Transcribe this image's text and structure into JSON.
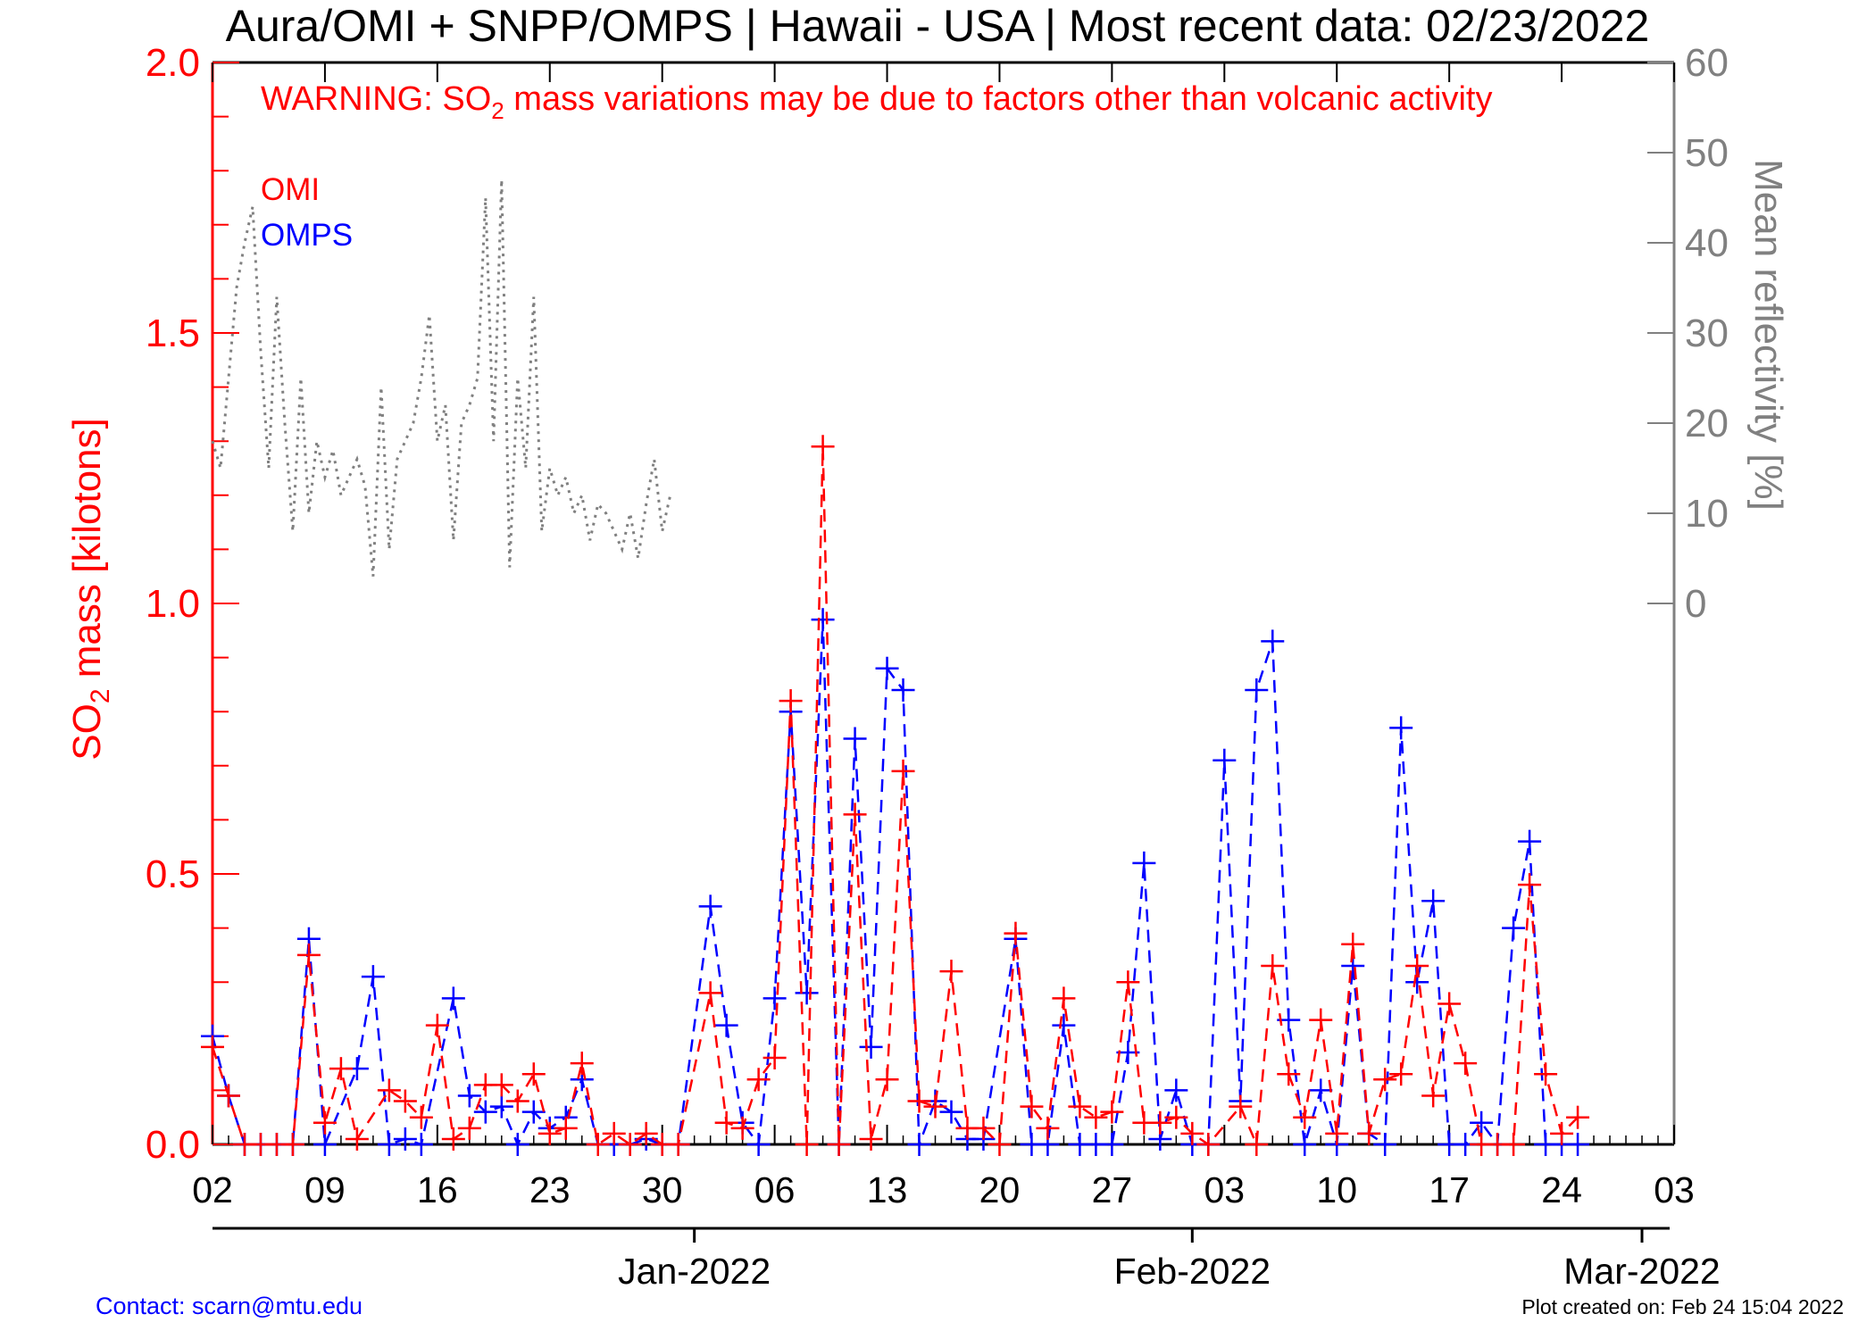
{
  "title": "Aura/OMI + SNPP/OMPS | Hawaii - USA | Most recent data: 02/23/2022",
  "warning": {
    "before": "WARNING: SO",
    "sub": "2",
    "after": " mass variations may be due to factors other than volcanic activity"
  },
  "footer": {
    "contact": "Contact: scarn@mtu.edu",
    "created": "Plot created on: Feb 24 15:04 2022"
  },
  "colors": {
    "omi": "#ff0000",
    "omps": "#0000ff",
    "reflectivity": "#808080",
    "axis_left": "#ff0000",
    "axis_right": "#808080",
    "contact": "#0000ff"
  },
  "chart_data": {
    "type": "line",
    "x_unit": "date",
    "x_start": "2021-12-02",
    "x_end": "2022-03-03",
    "x_tick_labels": [
      "02",
      "09",
      "16",
      "23",
      "30",
      "06",
      "13",
      "20",
      "27",
      "03",
      "10",
      "17",
      "24",
      "03"
    ],
    "x_month_labels": [
      "Jan-2022",
      "Feb-2022",
      "Mar-2022"
    ],
    "y_left": {
      "label_before": "SO",
      "label_sub": "2",
      "label_after": " mass [kilotons]",
      "ylim": [
        0,
        2
      ],
      "ticks": [
        "0.0",
        "0.5",
        "1.0",
        "1.5",
        "2.0"
      ]
    },
    "y_right": {
      "label": "Mean reflectivity [%]",
      "ylim": [
        -60,
        60
      ],
      "ticks": [
        "0",
        "10",
        "20",
        "30",
        "40",
        "50",
        "60"
      ]
    },
    "legend_position": "top-left",
    "series": [
      {
        "name": "OMI",
        "marker": "+",
        "line": "dashed",
        "axis": "left",
        "points": [
          [
            "2021-12-02",
            0.18
          ],
          [
            "2021-12-03",
            0.09
          ],
          [
            "2021-12-04",
            0.0
          ],
          [
            "2021-12-05",
            0.0
          ],
          [
            "2021-12-06",
            0.0
          ],
          [
            "2021-12-07",
            0.0
          ],
          [
            "2021-12-08",
            0.35
          ],
          [
            "2021-12-09",
            0.04
          ],
          [
            "2021-12-10",
            0.14
          ],
          [
            "2021-12-11",
            0.01
          ],
          [
            "2021-12-13",
            0.1
          ],
          [
            "2021-12-14",
            0.08
          ],
          [
            "2021-12-15",
            0.05
          ],
          [
            "2021-12-16",
            0.22
          ],
          [
            "2021-12-17",
            0.01
          ],
          [
            "2021-12-18",
            0.03
          ],
          [
            "2021-12-19",
            0.11
          ],
          [
            "2021-12-20",
            0.11
          ],
          [
            "2021-12-21",
            0.08
          ],
          [
            "2021-12-22",
            0.13
          ],
          [
            "2021-12-23",
            0.02
          ],
          [
            "2021-12-24",
            0.03
          ],
          [
            "2021-12-25",
            0.15
          ],
          [
            "2021-12-26",
            0.0
          ],
          [
            "2021-12-27",
            0.02
          ],
          [
            "2021-12-28",
            0.0
          ],
          [
            "2021-12-29",
            0.02
          ],
          [
            "2021-12-30",
            0.0
          ],
          [
            "2021-12-31",
            0.0
          ],
          [
            "2022-01-02",
            0.28
          ],
          [
            "2022-01-03",
            0.04
          ],
          [
            "2022-01-04",
            0.03
          ],
          [
            "2022-01-05",
            0.12
          ],
          [
            "2022-01-06",
            0.16
          ],
          [
            "2022-01-07",
            0.82
          ],
          [
            "2022-01-08",
            0.0
          ],
          [
            "2022-01-09",
            1.29
          ],
          [
            "2022-01-10",
            0.0
          ],
          [
            "2022-01-11",
            0.61
          ],
          [
            "2022-01-12",
            0.01
          ],
          [
            "2022-01-13",
            0.12
          ],
          [
            "2022-01-14",
            0.69
          ],
          [
            "2022-01-15",
            0.08
          ],
          [
            "2022-01-16",
            0.07
          ],
          [
            "2022-01-17",
            0.32
          ],
          [
            "2022-01-18",
            0.03
          ],
          [
            "2022-01-19",
            0.03
          ],
          [
            "2022-01-20",
            0.0
          ],
          [
            "2022-01-21",
            0.39
          ],
          [
            "2022-01-22",
            0.07
          ],
          [
            "2022-01-23",
            0.03
          ],
          [
            "2022-01-24",
            0.27
          ],
          [
            "2022-01-25",
            0.07
          ],
          [
            "2022-01-26",
            0.05
          ],
          [
            "2022-01-27",
            0.06
          ],
          [
            "2022-01-28",
            0.3
          ],
          [
            "2022-01-29",
            0.04
          ],
          [
            "2022-01-30",
            0.04
          ],
          [
            "2022-01-31",
            0.05
          ],
          [
            "2022-02-01",
            0.02
          ],
          [
            "2022-02-02",
            0.0
          ],
          [
            "2022-02-04",
            0.07
          ],
          [
            "2022-02-05",
            0.0
          ],
          [
            "2022-02-06",
            0.33
          ],
          [
            "2022-02-07",
            0.13
          ],
          [
            "2022-02-08",
            0.05
          ],
          [
            "2022-02-09",
            0.23
          ],
          [
            "2022-02-10",
            0.02
          ],
          [
            "2022-02-11",
            0.37
          ],
          [
            "2022-02-12",
            0.02
          ],
          [
            "2022-02-13",
            0.12
          ],
          [
            "2022-02-14",
            0.13
          ],
          [
            "2022-02-15",
            0.33
          ],
          [
            "2022-02-16",
            0.09
          ],
          [
            "2022-02-17",
            0.26
          ],
          [
            "2022-02-18",
            0.15
          ],
          [
            "2022-02-19",
            0.0
          ],
          [
            "2022-02-20",
            0.0
          ],
          [
            "2022-02-21",
            0.0
          ],
          [
            "2022-02-22",
            0.48
          ],
          [
            "2022-02-23",
            0.13
          ],
          [
            "2022-02-24",
            0.02
          ],
          [
            "2022-02-25",
            0.05
          ]
        ]
      },
      {
        "name": "OMPS",
        "marker": "+",
        "line": "dashed",
        "axis": "left",
        "points": [
          [
            "2021-12-02",
            0.2
          ],
          [
            "2021-12-03",
            0.09
          ],
          [
            "2021-12-04",
            0.0
          ],
          [
            "2021-12-05",
            0.0
          ],
          [
            "2021-12-06",
            0.0
          ],
          [
            "2021-12-07",
            0.0
          ],
          [
            "2021-12-08",
            0.38
          ],
          [
            "2021-12-09",
            0.0
          ],
          [
            "2021-12-11",
            0.14
          ],
          [
            "2021-12-12",
            0.31
          ],
          [
            "2021-12-13",
            0.0
          ],
          [
            "2021-12-14",
            0.01
          ],
          [
            "2021-12-15",
            0.0
          ],
          [
            "2021-12-17",
            0.27
          ],
          [
            "2021-12-18",
            0.09
          ],
          [
            "2021-12-19",
            0.06
          ],
          [
            "2021-12-20",
            0.07
          ],
          [
            "2021-12-21",
            0.0
          ],
          [
            "2021-12-22",
            0.06
          ],
          [
            "2021-12-23",
            0.03
          ],
          [
            "2021-12-24",
            0.05
          ],
          [
            "2021-12-25",
            0.12
          ],
          [
            "2021-12-26",
            0.0
          ],
          [
            "2021-12-27",
            0.0
          ],
          [
            "2021-12-28",
            0.0
          ],
          [
            "2021-12-29",
            0.01
          ],
          [
            "2021-12-30",
            0.0
          ],
          [
            "2021-12-31",
            0.0
          ],
          [
            "2022-01-02",
            0.44
          ],
          [
            "2022-01-03",
            0.22
          ],
          [
            "2022-01-04",
            0.04
          ],
          [
            "2022-01-05",
            0.0
          ],
          [
            "2022-01-06",
            0.27
          ],
          [
            "2022-01-07",
            0.8
          ],
          [
            "2022-01-08",
            0.28
          ],
          [
            "2022-01-09",
            0.97
          ],
          [
            "2022-01-10",
            0.0
          ],
          [
            "2022-01-11",
            0.75
          ],
          [
            "2022-01-12",
            0.18
          ],
          [
            "2022-01-13",
            0.88
          ],
          [
            "2022-01-14",
            0.84
          ],
          [
            "2022-01-15",
            0.0
          ],
          [
            "2022-01-16",
            0.08
          ],
          [
            "2022-01-17",
            0.06
          ],
          [
            "2022-01-18",
            0.01
          ],
          [
            "2022-01-19",
            0.01
          ],
          [
            "2022-01-21",
            0.38
          ],
          [
            "2022-01-22",
            0.0
          ],
          [
            "2022-01-23",
            0.0
          ],
          [
            "2022-01-24",
            0.22
          ],
          [
            "2022-01-25",
            0.0
          ],
          [
            "2022-01-26",
            0.0
          ],
          [
            "2022-01-27",
            0.0
          ],
          [
            "2022-01-28",
            0.17
          ],
          [
            "2022-01-29",
            0.52
          ],
          [
            "2022-01-30",
            0.01
          ],
          [
            "2022-01-31",
            0.1
          ],
          [
            "2022-02-01",
            0.0
          ],
          [
            "2022-02-02",
            0.0
          ],
          [
            "2022-02-03",
            0.71
          ],
          [
            "2022-02-04",
            0.08
          ],
          [
            "2022-02-05",
            0.84
          ],
          [
            "2022-02-06",
            0.93
          ],
          [
            "2022-02-07",
            0.23
          ],
          [
            "2022-02-08",
            0.0
          ],
          [
            "2022-02-09",
            0.1
          ],
          [
            "2022-02-10",
            0.0
          ],
          [
            "2022-02-11",
            0.33
          ],
          [
            "2022-02-12",
            0.02
          ],
          [
            "2022-02-13",
            0.0
          ],
          [
            "2022-02-14",
            0.77
          ],
          [
            "2022-02-15",
            0.3
          ],
          [
            "2022-02-16",
            0.45
          ],
          [
            "2022-02-17",
            0.0
          ],
          [
            "2022-02-18",
            0.0
          ],
          [
            "2022-02-19",
            0.04
          ],
          [
            "2022-02-20",
            0.0
          ],
          [
            "2022-02-21",
            0.4
          ],
          [
            "2022-02-22",
            0.56
          ],
          [
            "2022-02-23",
            0.0
          ],
          [
            "2022-02-24",
            0.0
          ],
          [
            "2022-02-25",
            0.0
          ]
        ]
      },
      {
        "name": "Mean reflectivity",
        "line": "dotted",
        "axis": "right",
        "points": [
          [
            "2021-12-02",
            18
          ],
          [
            "2021-12-02.5",
            15
          ],
          [
            "2021-12-03",
            25
          ],
          [
            "2021-12-03.5",
            35
          ],
          [
            "2021-12-04",
            40
          ],
          [
            "2021-12-04.5",
            44
          ],
          [
            "2021-12-05",
            28
          ],
          [
            "2021-12-05.5",
            15
          ],
          [
            "2021-12-06",
            34
          ],
          [
            "2021-12-06.5",
            20
          ],
          [
            "2021-12-07",
            8
          ],
          [
            "2021-12-07.5",
            25
          ],
          [
            "2021-12-08",
            10
          ],
          [
            "2021-12-08.5",
            18
          ],
          [
            "2021-12-09",
            14
          ],
          [
            "2021-12-09.5",
            17
          ],
          [
            "2021-12-10",
            12
          ],
          [
            "2021-12-10.5",
            14
          ],
          [
            "2021-12-11",
            16
          ],
          [
            "2021-12-11.5",
            13
          ],
          [
            "2021-12-12",
            3
          ],
          [
            "2021-12-12.5",
            24
          ],
          [
            "2021-12-13",
            6
          ],
          [
            "2021-12-13.5",
            16
          ],
          [
            "2021-12-14",
            18
          ],
          [
            "2021-12-14.5",
            20
          ],
          [
            "2021-12-15",
            25
          ],
          [
            "2021-12-15.5",
            32
          ],
          [
            "2021-12-16",
            18
          ],
          [
            "2021-12-16.5",
            22
          ],
          [
            "2021-12-17",
            7
          ],
          [
            "2021-12-17.5",
            20
          ],
          [
            "2021-12-18",
            22
          ],
          [
            "2021-12-18.5",
            25
          ],
          [
            "2021-12-19",
            45
          ],
          [
            "2021-12-19.5",
            18
          ],
          [
            "2021-12-20",
            47
          ],
          [
            "2021-12-20.5",
            4
          ],
          [
            "2021-12-21",
            25
          ],
          [
            "2021-12-21.5",
            15
          ],
          [
            "2021-12-22",
            34
          ],
          [
            "2021-12-22.5",
            8
          ],
          [
            "2021-12-23",
            15
          ],
          [
            "2021-12-23.5",
            12
          ],
          [
            "2021-12-24",
            14
          ],
          [
            "2021-12-24.5",
            10
          ],
          [
            "2021-12-25",
            12
          ],
          [
            "2021-12-25.5",
            7
          ],
          [
            "2021-12-26",
            11
          ],
          [
            "2021-12-26.5",
            10
          ],
          [
            "2021-12-27",
            8
          ],
          [
            "2021-12-27.5",
            6
          ],
          [
            "2021-12-28",
            10
          ],
          [
            "2021-12-28.5",
            5
          ],
          [
            "2021-12-29",
            11
          ],
          [
            "2021-12-29.5",
            16
          ],
          [
            "2021-12-30",
            8
          ],
          [
            "2021-12-30.5",
            12
          ]
        ]
      }
    ]
  }
}
